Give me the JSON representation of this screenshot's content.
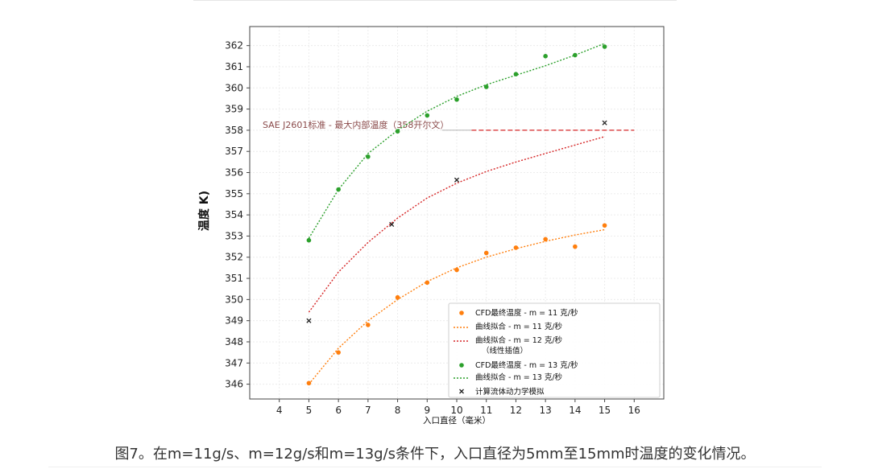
{
  "caption": "图7。在m=11g/s、m=12g/s和m=13g/s条件下，入口直径为5mm至15mm时温度的变化情况。",
  "chart_data": {
    "type": "scatter",
    "xlabel": "入口直径（毫米）",
    "ylabel": "温度 K)",
    "xlim": [
      3,
      17
    ],
    "ylim": [
      345.3,
      362.9
    ],
    "x_ticks": [
      4,
      5,
      6,
      7,
      8,
      9,
      10,
      11,
      12,
      13,
      14,
      15,
      16
    ],
    "y_ticks": [
      346,
      347,
      348,
      349,
      350,
      351,
      352,
      353,
      354,
      355,
      356,
      357,
      358,
      359,
      360,
      361,
      362
    ],
    "grid": true,
    "legend_position": "lower-right",
    "reference_line": {
      "label": "SAE J2601标准 - 最大内部温度（358开尔文）",
      "y": 358,
      "color": "#d62728"
    },
    "series": [
      {
        "name": "CFD最终温度 - m = 11 克/秒",
        "kind": "scatter",
        "marker": "circle",
        "color": "#ff7f0e",
        "x": [
          5,
          6,
          7,
          8,
          9,
          10,
          11,
          12,
          13,
          14,
          15
        ],
        "y": [
          346.05,
          347.5,
          348.8,
          350.1,
          350.8,
          351.4,
          352.2,
          352.45,
          352.85,
          352.5,
          353.5
        ]
      },
      {
        "name": "曲线拟合 - m = 11 克/秒",
        "kind": "line",
        "color": "#ff7f0e",
        "x": [
          5,
          6,
          7,
          8,
          9,
          10,
          11,
          12,
          13,
          14,
          15
        ],
        "y": [
          346.0,
          347.7,
          349.0,
          350.0,
          350.85,
          351.5,
          352.0,
          352.4,
          352.75,
          353.05,
          353.3
        ]
      },
      {
        "name": "曲线拟合 - m = 12 克/秒\n（线性插值）",
        "kind": "line",
        "color": "#d62728",
        "x": [
          5,
          6,
          7,
          8,
          9,
          10,
          11,
          12,
          13,
          14,
          15
        ],
        "y": [
          349.4,
          351.3,
          352.7,
          353.85,
          354.8,
          355.5,
          356.05,
          356.5,
          356.9,
          357.3,
          357.7
        ]
      },
      {
        "name": "CFD最终温度 - m = 13 克/秒",
        "kind": "scatter",
        "marker": "circle",
        "color": "#2ca02c",
        "x": [
          5,
          6,
          7,
          8,
          9,
          10,
          11,
          12,
          13,
          14,
          15
        ],
        "y": [
          352.8,
          355.2,
          356.75,
          357.95,
          358.7,
          359.45,
          360.05,
          360.65,
          361.5,
          361.55,
          361.95
        ]
      },
      {
        "name": "曲线拟合 - m = 13 克/秒",
        "kind": "line",
        "color": "#2ca02c",
        "x": [
          5,
          6,
          7,
          8,
          9,
          10,
          11,
          12,
          13,
          14,
          15
        ],
        "y": [
          352.9,
          355.2,
          356.9,
          358.0,
          358.9,
          359.6,
          360.15,
          360.6,
          361.05,
          361.55,
          362.1
        ]
      },
      {
        "name": "计算流体动力学模拟",
        "kind": "scatter",
        "marker": "x",
        "color": "#222222",
        "x": [
          5,
          7.8,
          10,
          15
        ],
        "y": [
          349.0,
          353.55,
          355.65,
          358.35
        ]
      }
    ]
  }
}
